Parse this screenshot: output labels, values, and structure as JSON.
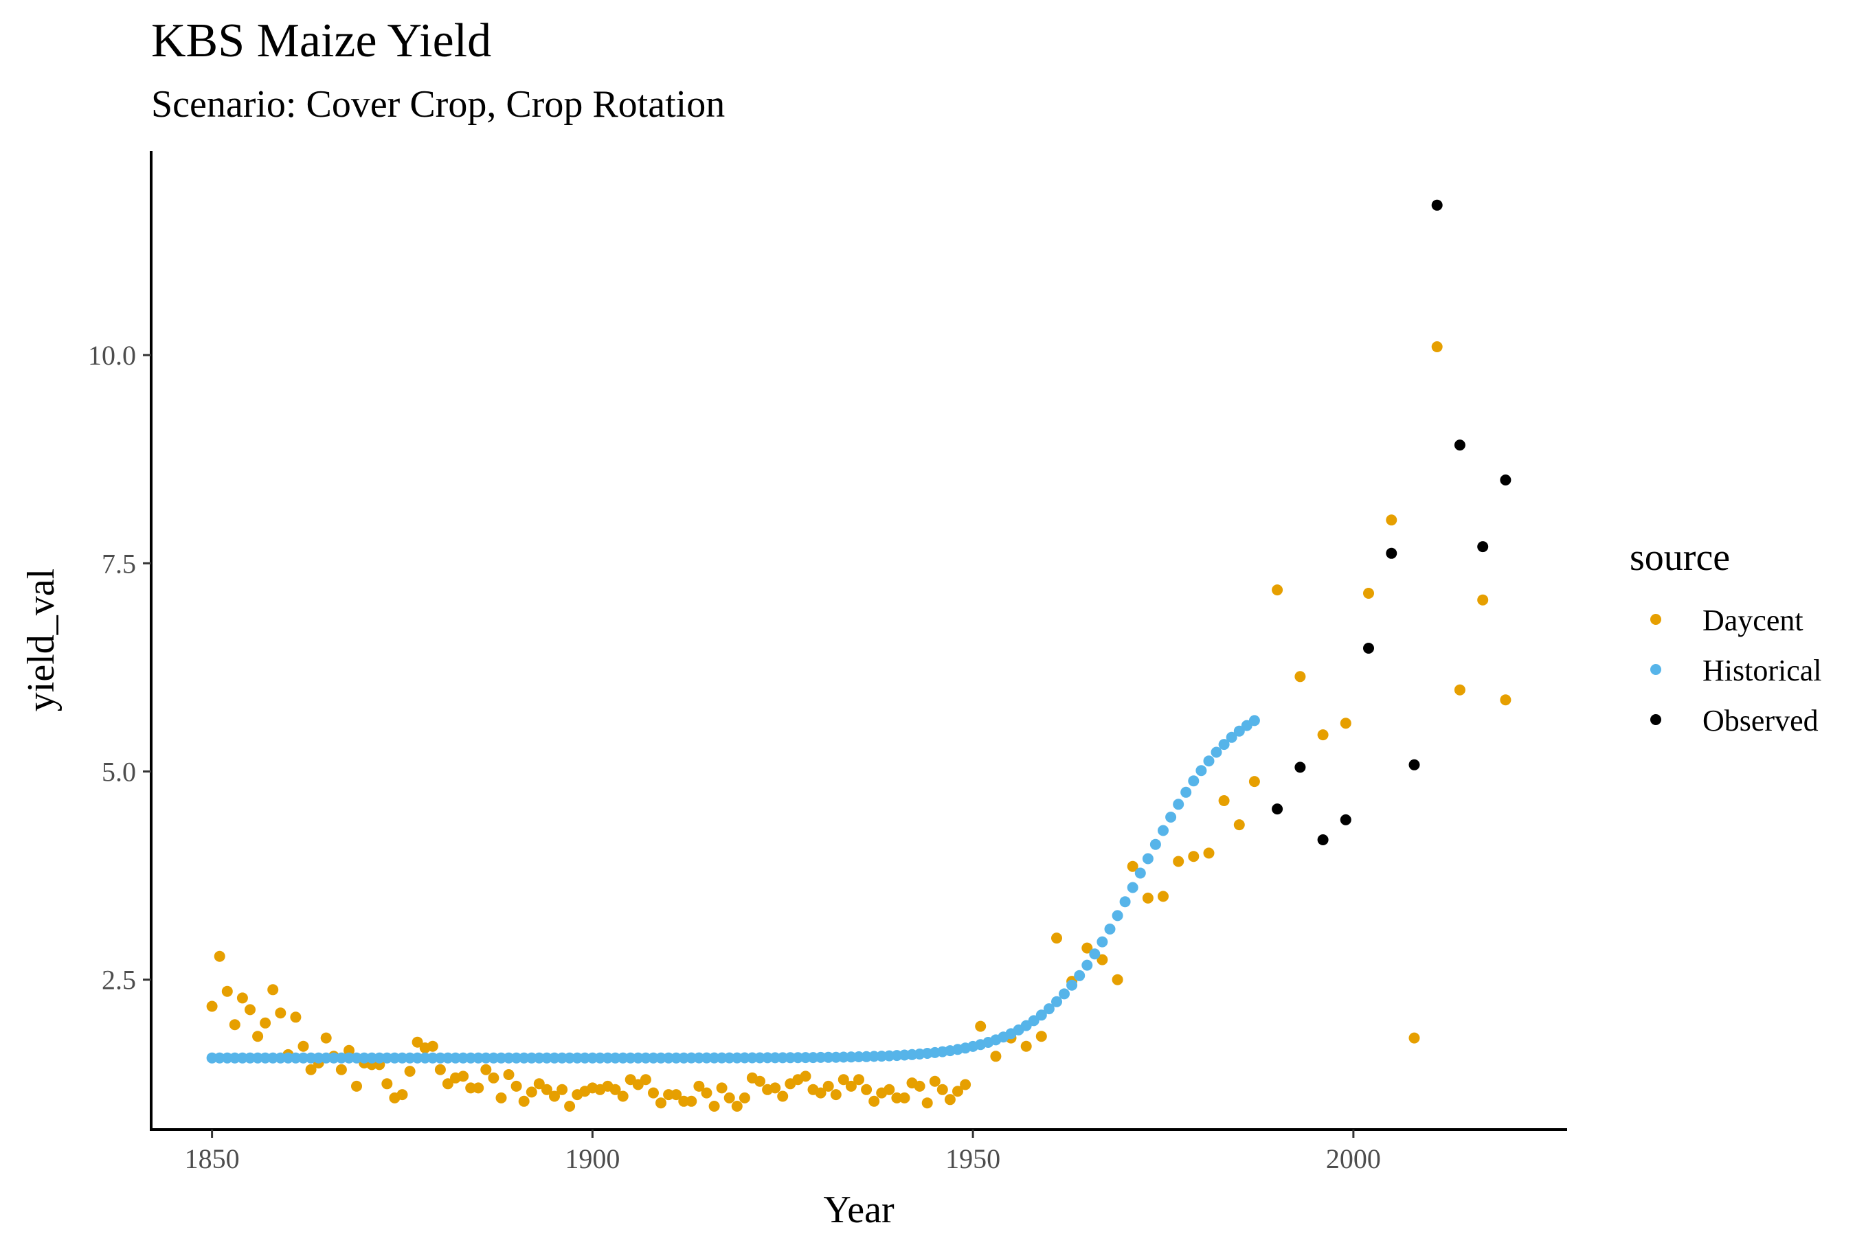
{
  "chart_data": {
    "type": "scatter",
    "title": "KBS Maize Yield",
    "subtitle": "Scenario: Cover Crop, Crop Rotation",
    "xlabel": "Year",
    "ylabel": "yield_val",
    "xlim": [
      1842,
      2028
    ],
    "ylim": [
      0.7,
      12.45
    ],
    "xticks": [
      1850,
      1900,
      1950,
      2000
    ],
    "xtick_labels": [
      "1850",
      "1900",
      "1950",
      "2000"
    ],
    "yticks": [
      2.5,
      5.0,
      7.5,
      10.0
    ],
    "ytick_labels": [
      "2.5",
      "5.0",
      "7.5",
      "10.0"
    ],
    "grid": false,
    "legend": {
      "title": "source",
      "position": "right"
    },
    "series": [
      {
        "name": "Daycent",
        "color": "#E69F00",
        "points": [
          [
            1850,
            2.18
          ],
          [
            1851,
            2.78
          ],
          [
            1852,
            2.36
          ],
          [
            1853,
            1.96
          ],
          [
            1854,
            2.28
          ],
          [
            1855,
            2.14
          ],
          [
            1856,
            1.82
          ],
          [
            1857,
            1.98
          ],
          [
            1858,
            2.38
          ],
          [
            1859,
            2.1
          ],
          [
            1860,
            1.6
          ],
          [
            1861,
            2.05
          ],
          [
            1862,
            1.7
          ],
          [
            1863,
            1.42
          ],
          [
            1864,
            1.5
          ],
          [
            1865,
            1.8
          ],
          [
            1866,
            1.58
          ],
          [
            1867,
            1.42
          ],
          [
            1868,
            1.65
          ],
          [
            1869,
            1.22
          ],
          [
            1870,
            1.5
          ],
          [
            1871,
            1.48
          ],
          [
            1872,
            1.48
          ],
          [
            1873,
            1.25
          ],
          [
            1874,
            1.08
          ],
          [
            1875,
            1.12
          ],
          [
            1876,
            1.4
          ],
          [
            1877,
            1.75
          ],
          [
            1878,
            1.68
          ],
          [
            1879,
            1.7
          ],
          [
            1880,
            1.42
          ],
          [
            1881,
            1.25
          ],
          [
            1882,
            1.32
          ],
          [
            1883,
            1.34
          ],
          [
            1884,
            1.2
          ],
          [
            1885,
            1.2
          ],
          [
            1886,
            1.42
          ],
          [
            1887,
            1.32
          ],
          [
            1888,
            1.08
          ],
          [
            1889,
            1.36
          ],
          [
            1890,
            1.22
          ],
          [
            1891,
            1.04
          ],
          [
            1892,
            1.15
          ],
          [
            1893,
            1.25
          ],
          [
            1894,
            1.18
          ],
          [
            1895,
            1.1
          ],
          [
            1896,
            1.18
          ],
          [
            1897,
            0.98
          ],
          [
            1898,
            1.12
          ],
          [
            1899,
            1.16
          ],
          [
            1900,
            1.2
          ],
          [
            1901,
            1.18
          ],
          [
            1902,
            1.22
          ],
          [
            1903,
            1.18
          ],
          [
            1904,
            1.1
          ],
          [
            1905,
            1.3
          ],
          [
            1906,
            1.24
          ],
          [
            1907,
            1.3
          ],
          [
            1908,
            1.14
          ],
          [
            1909,
            1.02
          ],
          [
            1910,
            1.12
          ],
          [
            1911,
            1.12
          ],
          [
            1912,
            1.04
          ],
          [
            1913,
            1.04
          ],
          [
            1914,
            1.22
          ],
          [
            1915,
            1.14
          ],
          [
            1916,
            0.98
          ],
          [
            1917,
            1.2
          ],
          [
            1918,
            1.08
          ],
          [
            1919,
            0.98
          ],
          [
            1920,
            1.08
          ],
          [
            1921,
            1.32
          ],
          [
            1922,
            1.28
          ],
          [
            1923,
            1.18
          ],
          [
            1924,
            1.2
          ],
          [
            1925,
            1.1
          ],
          [
            1926,
            1.25
          ],
          [
            1927,
            1.3
          ],
          [
            1928,
            1.34
          ],
          [
            1929,
            1.18
          ],
          [
            1930,
            1.14
          ],
          [
            1931,
            1.22
          ],
          [
            1932,
            1.12
          ],
          [
            1933,
            1.3
          ],
          [
            1934,
            1.22
          ],
          [
            1935,
            1.3
          ],
          [
            1936,
            1.18
          ],
          [
            1937,
            1.04
          ],
          [
            1938,
            1.14
          ],
          [
            1939,
            1.18
          ],
          [
            1940,
            1.08
          ],
          [
            1941,
            1.08
          ],
          [
            1942,
            1.26
          ],
          [
            1943,
            1.22
          ],
          [
            1944,
            1.02
          ],
          [
            1945,
            1.28
          ],
          [
            1946,
            1.18
          ],
          [
            1947,
            1.06
          ],
          [
            1948,
            1.16
          ],
          [
            1949,
            1.24
          ],
          [
            1951,
            1.94
          ],
          [
            1953,
            1.58
          ],
          [
            1955,
            1.8
          ],
          [
            1957,
            1.7
          ],
          [
            1959,
            1.82
          ],
          [
            1961,
            3.0
          ],
          [
            1963,
            2.48
          ],
          [
            1965,
            2.88
          ],
          [
            1967,
            2.74
          ],
          [
            1969,
            2.5
          ],
          [
            1971,
            3.86
          ],
          [
            1973,
            3.48
          ],
          [
            1975,
            3.5
          ],
          [
            1977,
            3.92
          ],
          [
            1979,
            3.98
          ],
          [
            1981,
            4.02
          ],
          [
            1983,
            4.65
          ],
          [
            1985,
            4.36
          ],
          [
            1987,
            4.88
          ],
          [
            1990,
            7.18
          ],
          [
            1993,
            6.14
          ],
          [
            1996,
            5.44
          ],
          [
            1999,
            5.58
          ],
          [
            2002,
            7.14
          ],
          [
            2005,
            8.02
          ],
          [
            2008,
            1.8
          ],
          [
            2011,
            10.1
          ],
          [
            2014,
            5.98
          ],
          [
            2017,
            7.06
          ],
          [
            2020,
            5.86
          ]
        ]
      },
      {
        "name": "Historical",
        "color": "#56B4E9",
        "model": {
          "kind": "logistic",
          "x_from": 1850,
          "x_to": 1987,
          "base": 1.56,
          "amplitude": 4.44,
          "midpoint": 1972,
          "scale": 6.4
        }
      },
      {
        "name": "Observed",
        "color": "#000000",
        "points": [
          [
            1990,
            4.55
          ],
          [
            1993,
            5.05
          ],
          [
            1996,
            4.18
          ],
          [
            1999,
            4.42
          ],
          [
            2002,
            6.48
          ],
          [
            2005,
            7.62
          ],
          [
            2008,
            5.08
          ],
          [
            2011,
            11.8
          ],
          [
            2014,
            8.92
          ],
          [
            2017,
            7.7
          ],
          [
            2020,
            8.5
          ]
        ]
      }
    ]
  }
}
